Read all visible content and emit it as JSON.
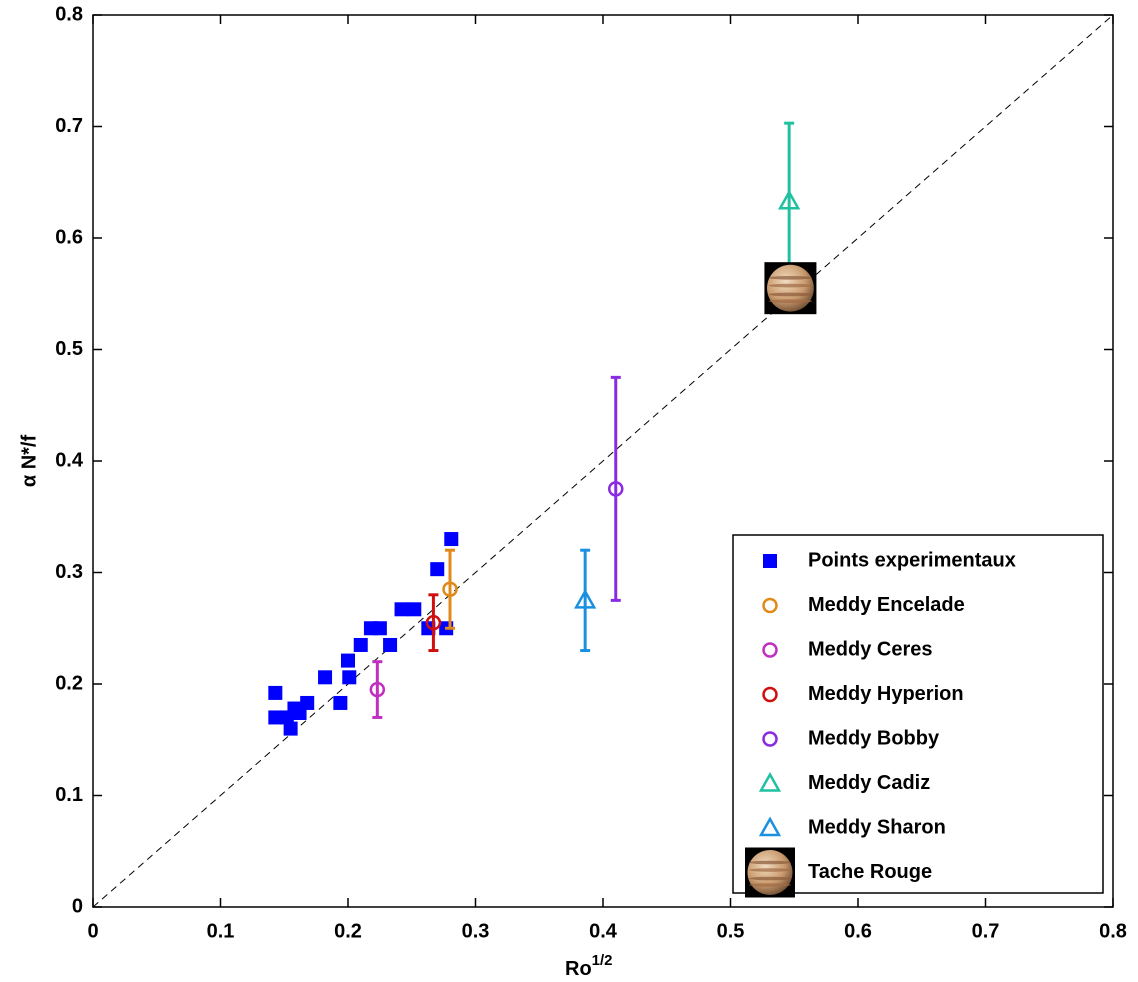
{
  "chart_data": {
    "type": "scatter",
    "x_label": "Ro",
    "x_label_superscript": "1/2",
    "y_label": "α N*/f",
    "xlim": [
      0,
      0.8
    ],
    "ylim": [
      0,
      0.8
    ],
    "xticks": [
      0,
      0.1,
      0.2,
      0.3,
      0.4,
      0.5,
      0.6,
      0.7,
      0.8
    ],
    "yticks": [
      0,
      0.1,
      0.2,
      0.3,
      0.4,
      0.5,
      0.6,
      0.7,
      0.8
    ],
    "legend": "lower right",
    "series": [
      {
        "name": "Points experimentaux",
        "color": "#0000ff",
        "marker": "square",
        "x": [
          0.143,
          0.143,
          0.152,
          0.155,
          0.158,
          0.162,
          0.168,
          0.182,
          0.194,
          0.2,
          0.201,
          0.21,
          0.218,
          0.225,
          0.233,
          0.242,
          0.252,
          0.263,
          0.27,
          0.277,
          0.281
        ],
        "values": [
          0.192,
          0.17,
          0.17,
          0.16,
          0.178,
          0.174,
          0.183,
          0.206,
          0.183,
          0.221,
          0.206,
          0.235,
          0.25,
          0.25,
          0.235,
          0.267,
          0.267,
          0.25,
          0.303,
          0.25,
          0.33
        ]
      },
      {
        "name": "Meddy Encelade",
        "color": "#e08a1a",
        "marker": "circle",
        "x": [
          0.28
        ],
        "values": [
          0.285
        ],
        "errors": [
          0.035
        ]
      },
      {
        "name": "Meddy Ceres",
        "color": "#c030c0",
        "marker": "circle",
        "x": [
          0.223
        ],
        "values": [
          0.195
        ],
        "errors": [
          0.025
        ]
      },
      {
        "name": "Meddy Hyperion",
        "color": "#d01010",
        "marker": "circle",
        "x": [
          0.267
        ],
        "values": [
          0.255
        ],
        "errors": [
          0.025
        ]
      },
      {
        "name": "Meddy Bobby",
        "color": "#8a2be2",
        "marker": "circle",
        "x": [
          0.41
        ],
        "values": [
          0.375
        ],
        "errors": [
          0.1
        ]
      },
      {
        "name": "Meddy Cadiz",
        "color": "#20c0a0",
        "marker": "triangle",
        "x": [
          0.546
        ],
        "values": [
          0.633
        ],
        "errors": [
          0.07
        ]
      },
      {
        "name": "Meddy Sharon",
        "color": "#1a90e0",
        "marker": "triangle",
        "x": [
          0.386
        ],
        "values": [
          0.275
        ],
        "errors": [
          0.045
        ]
      },
      {
        "name": "Tache Rouge",
        "marker": "image",
        "x": [
          0.547
        ],
        "values": [
          0.555
        ]
      }
    ]
  }
}
